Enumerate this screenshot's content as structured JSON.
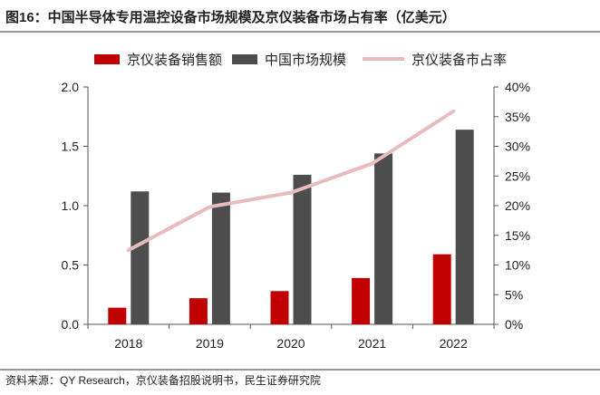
{
  "header": {
    "title": "图16：中国半导体专用温控设备市场规模及京仪装备市场占有率（亿美元）"
  },
  "footer": {
    "source": "资料来源：QY Research，京仪装备招股说明书，民生证券研究院"
  },
  "chart_data": {
    "type": "bar",
    "title": "图16：中国半导体专用温控设备市场规模及京仪装备市场占有率（亿美元）",
    "categories": [
      "2018",
      "2019",
      "2020",
      "2021",
      "2022"
    ],
    "series": [
      {
        "name": "京仪装备销售额",
        "kind": "bar",
        "axis": "left",
        "color": "#c00000",
        "values": [
          0.14,
          0.22,
          0.28,
          0.39,
          0.59
        ]
      },
      {
        "name": "中国市场规模",
        "kind": "bar",
        "axis": "left",
        "color": "#4d4d4d",
        "values": [
          1.12,
          1.11,
          1.26,
          1.44,
          1.64
        ]
      },
      {
        "name": "京仪装备市占率",
        "kind": "line",
        "axis": "right",
        "color": "#e8bcbc",
        "values": [
          12.5,
          19.8,
          22.2,
          27.1,
          35.9
        ]
      }
    ],
    "left_axis": {
      "min": 0,
      "max": 2.0,
      "ticks": [
        "0.0",
        "0.5",
        "1.0",
        "1.5",
        "2.0"
      ],
      "tick_values": [
        0,
        0.5,
        1.0,
        1.5,
        2.0
      ]
    },
    "right_axis": {
      "min": 0,
      "max": 40,
      "ticks": [
        "0%",
        "5%",
        "10%",
        "15%",
        "20%",
        "25%",
        "30%",
        "35%",
        "40%"
      ],
      "tick_values": [
        0,
        5,
        10,
        15,
        20,
        25,
        30,
        35,
        40
      ]
    },
    "legend_position": "top",
    "grid": false,
    "xlabel": "",
    "ylabel": ""
  }
}
